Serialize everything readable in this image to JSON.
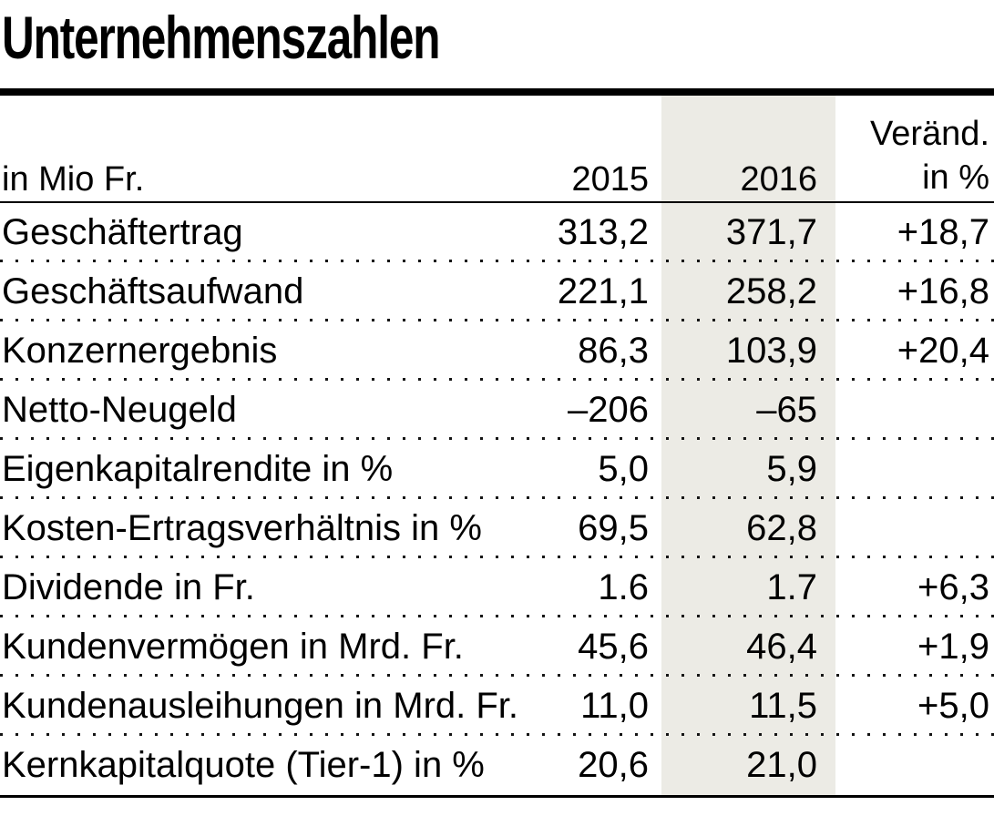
{
  "title": "Unternehmenszahlen",
  "header": {
    "unit_label": "in Mio Fr.",
    "year_prev": "2015",
    "year_curr": "2016",
    "change_line1": "Veränd.",
    "change_line2": "in %"
  },
  "chart_data": {
    "type": "table",
    "title": "Unternehmenszahlen",
    "columns": [
      "in Mio Fr.",
      "2015",
      "2016",
      "Veränd. in %"
    ],
    "highlighted_column": "2016",
    "rows": [
      [
        "Geschäftertrag",
        "313,2",
        "371,7",
        "+18,7"
      ],
      [
        "Geschäftsaufwand",
        "221,1",
        "258,2",
        "+16,8"
      ],
      [
        "Konzernergebnis",
        "86,3",
        "103,9",
        "+20,4"
      ],
      [
        "Netto-Neugeld",
        "–206",
        "–65",
        ""
      ],
      [
        "Eigenkapitalrendite in %",
        "5,0",
        "5,9",
        ""
      ],
      [
        "Kosten-Ertragsverhältnis in %",
        "69,5",
        "62,8",
        ""
      ],
      [
        "Dividende in Fr.",
        "1.6",
        "1.7",
        "+6,3"
      ],
      [
        "Kundenvermögen in Mrd. Fr.",
        "45,6",
        "46,4",
        "+1,9"
      ],
      [
        "Kundenausleihungen in Mrd. Fr.",
        "11,0",
        "11,5",
        "+5,0"
      ],
      [
        "Kernkapitalquote (Tier-1) in %",
        "20,6",
        "21,0",
        ""
      ]
    ]
  },
  "colors": {
    "highlight_column_bg": "#ECEBE5",
    "text": "#000000",
    "dots": "#141414",
    "rule": "#000000"
  }
}
